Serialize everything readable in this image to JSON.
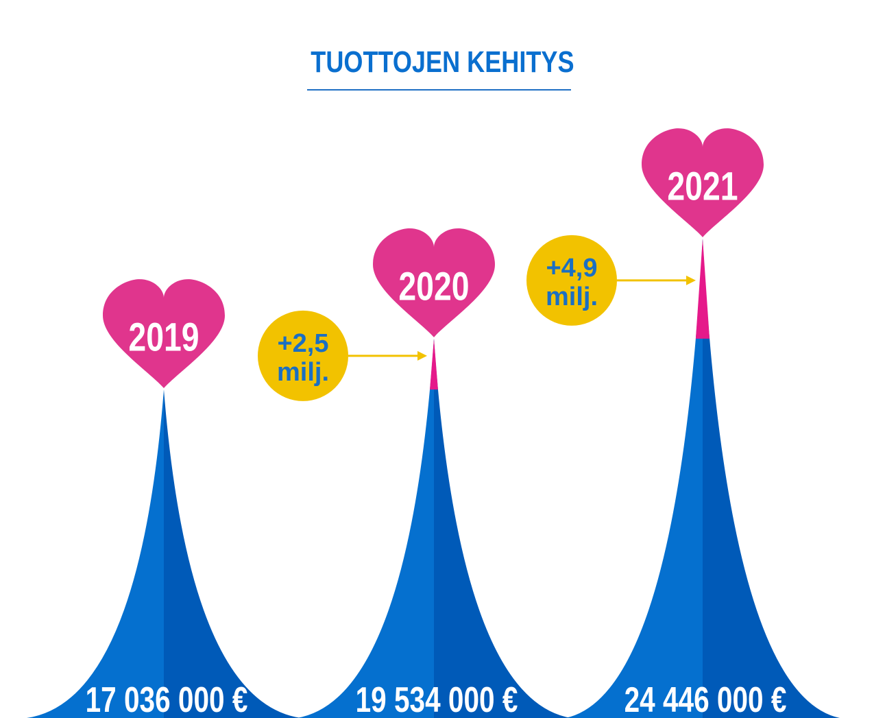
{
  "title": "TUOTTOJEN KEHITYS",
  "colors": {
    "peak_light": "#0570cf",
    "peak_dark": "#005ab8",
    "peak_deep": "#0a45a0",
    "increase": "#e5198a",
    "heart": "#e0358d",
    "bubble": "#f2c200",
    "bubble_text": "#1a6fc4",
    "arrow": "#f2c200",
    "label_text": "#ffffff",
    "title": "#0a6fcf"
  },
  "chart_data": {
    "type": "area",
    "title": "TUOTTOJEN KEHITYS",
    "categories": [
      "2019",
      "2020",
      "2021"
    ],
    "values": [
      17036000,
      19534000,
      24446000
    ],
    "value_labels": [
      "17 036 000 €",
      "19 534 000 €",
      "24 446 000 €"
    ],
    "unit": "€",
    "increases": [
      {
        "between": [
          "2019",
          "2020"
        ],
        "line1": "+2,5",
        "line2": "milj."
      },
      {
        "between": [
          "2020",
          "2021"
        ],
        "line1": "+4,9",
        "line2": "milj."
      }
    ],
    "legend": "none",
    "grid": false
  }
}
